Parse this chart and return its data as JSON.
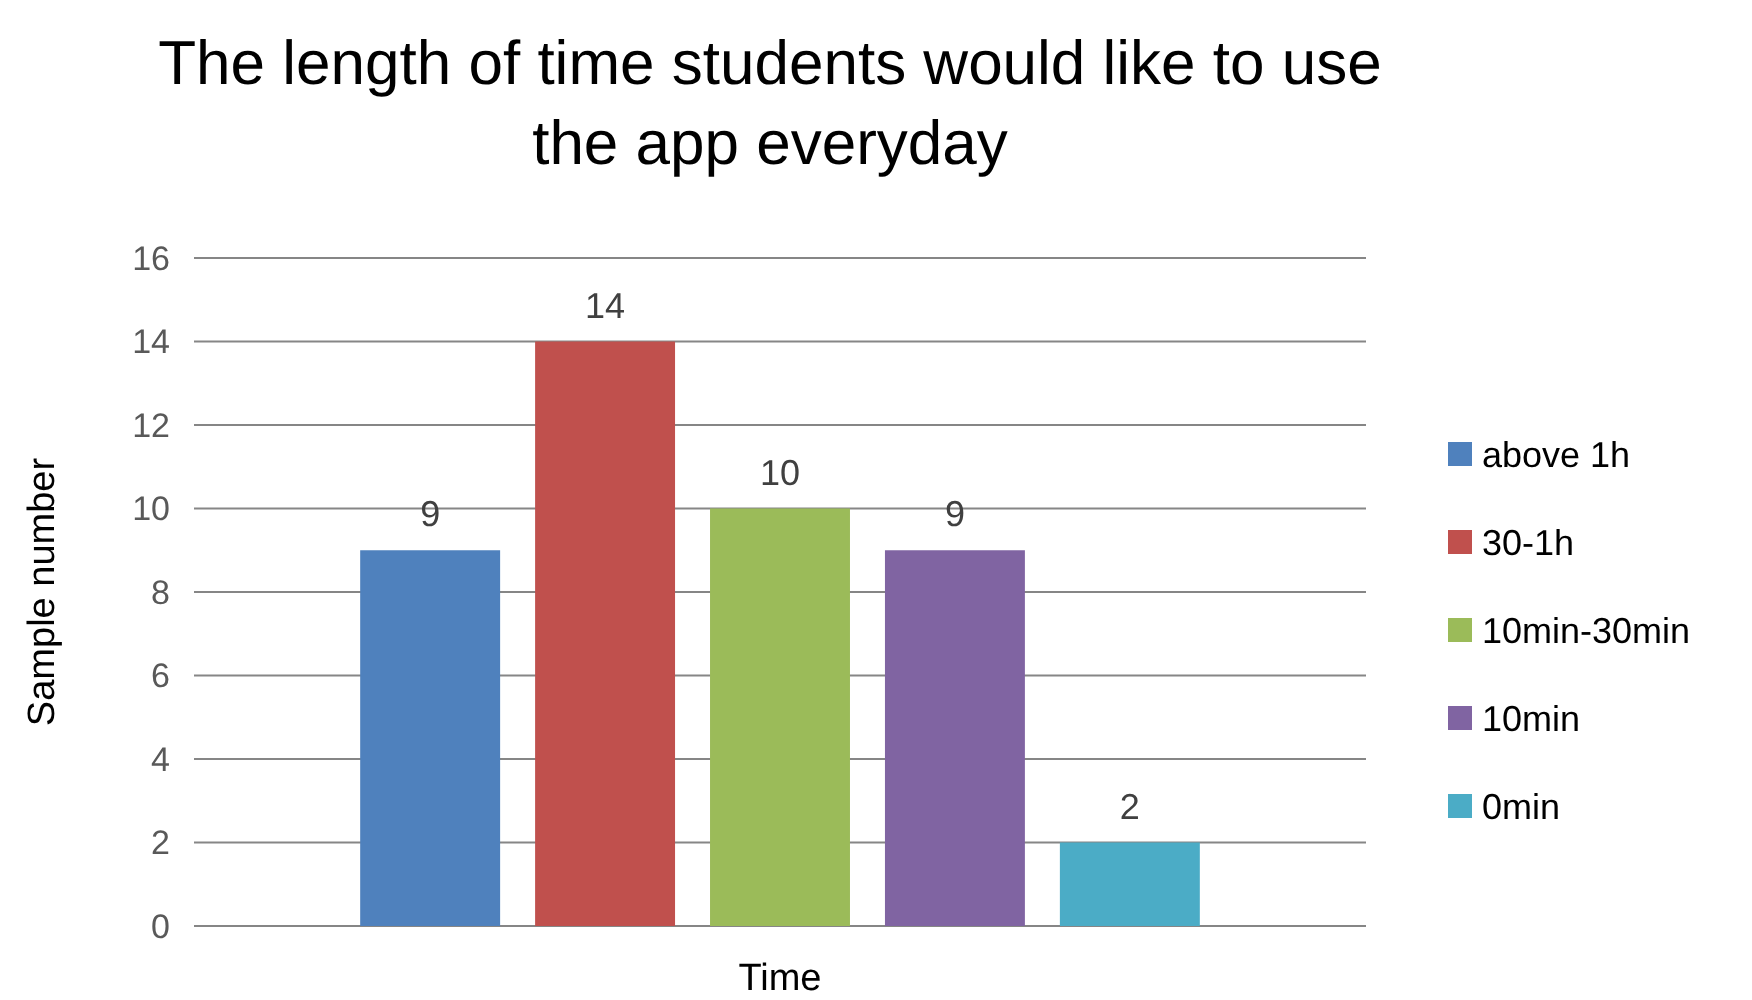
{
  "chart_data": {
    "type": "bar",
    "title": "The length of time students would like to use the app everyday",
    "xlabel": "Time",
    "ylabel": "Sample number",
    "categories": [
      null
    ],
    "series": [
      {
        "name": "above 1h",
        "color": "#4f81bd",
        "values": [
          9
        ]
      },
      {
        "name": "30-1h",
        "color": "#c0504d",
        "values": [
          14
        ]
      },
      {
        "name": "10min-30min",
        "color": "#9bbb59",
        "values": [
          10
        ]
      },
      {
        "name": "10min",
        "color": "#8064a2",
        "values": [
          9
        ]
      },
      {
        "name": "0min",
        "color": "#4bacc6",
        "values": [
          2
        ]
      }
    ],
    "ylim": [
      0,
      16
    ],
    "yticks": [
      0,
      2,
      4,
      6,
      8,
      10,
      12,
      14,
      16
    ],
    "grid": "y",
    "legend": "right",
    "data_labels": true
  }
}
